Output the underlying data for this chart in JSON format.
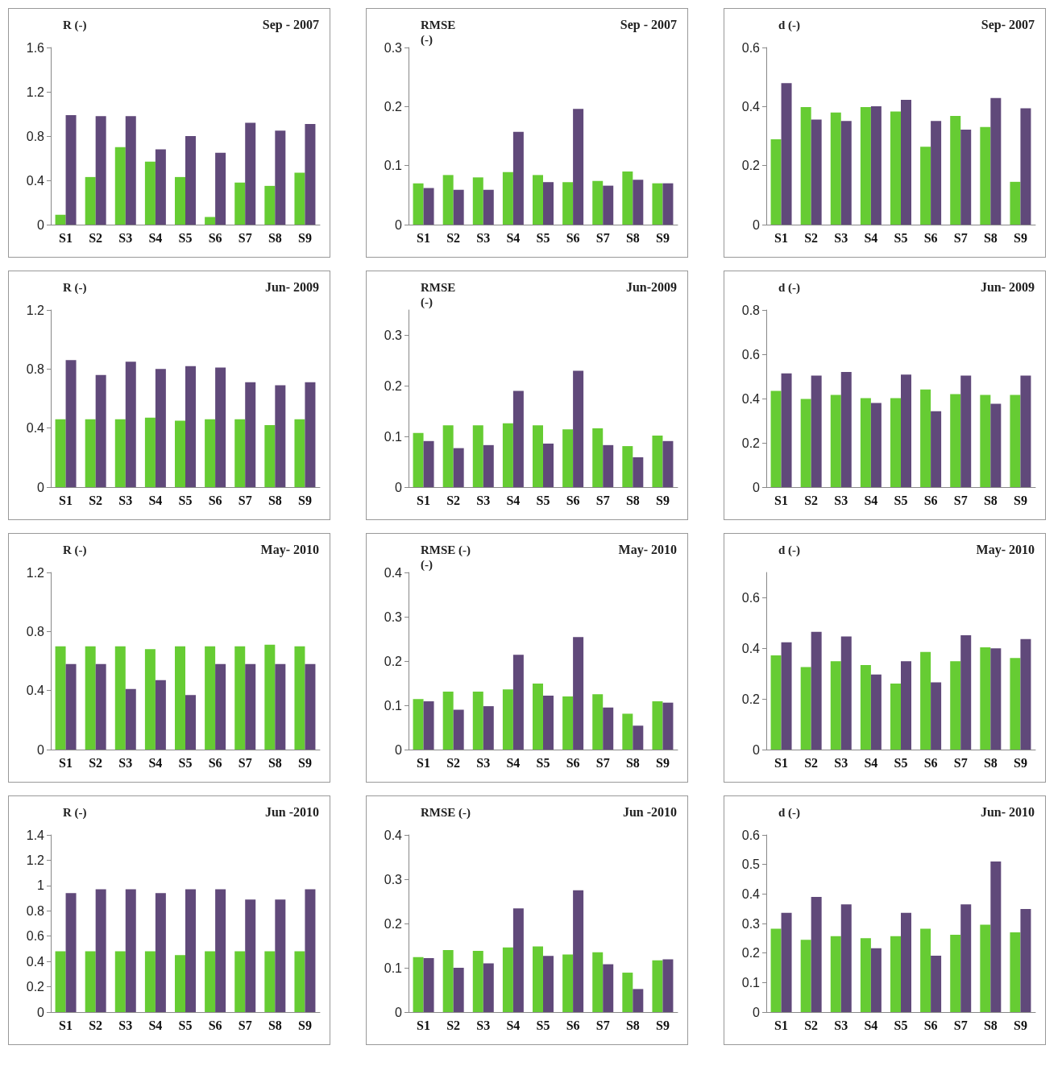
{
  "chart_data": [
    {
      "type": "bar",
      "title": "R (-)",
      "subtitle": "Sep - 2007",
      "categories": [
        "S1",
        "S2",
        "S3",
        "S4",
        "S5",
        "S6",
        "S7",
        "S8",
        "S9"
      ],
      "ylim": [
        0,
        1.6
      ],
      "yticks": [
        0,
        0.4,
        0.8,
        1.2,
        1.6
      ],
      "series": [
        {
          "color": "#66cc33",
          "values": [
            0.09,
            0.43,
            0.7,
            0.57,
            0.43,
            0.07,
            0.38,
            0.35,
            0.47
          ]
        },
        {
          "color": "#60497a",
          "values": [
            0.99,
            0.98,
            0.98,
            0.68,
            0.8,
            0.65,
            0.92,
            0.85,
            0.91
          ]
        }
      ]
    },
    {
      "type": "bar",
      "title": "RMSE\n(-)",
      "subtitle": "Sep - 2007",
      "categories": [
        "S1",
        "S2",
        "S3",
        "S4",
        "S5",
        "S6",
        "S7",
        "S8",
        "S9"
      ],
      "ylim": [
        0,
        0.3
      ],
      "yticks": [
        0,
        0.1,
        0.2,
        0.3
      ],
      "series": [
        {
          "color": "#66cc33",
          "values": [
            0.07,
            0.084,
            0.08,
            0.089,
            0.084,
            0.072,
            0.074,
            0.09,
            0.07
          ]
        },
        {
          "color": "#60497a",
          "values": [
            0.062,
            0.059,
            0.059,
            0.157,
            0.072,
            0.196,
            0.066,
            0.076,
            0.07
          ]
        }
      ]
    },
    {
      "type": "bar",
      "title": "d (-)",
      "subtitle": "Sep- 2007",
      "categories": [
        "S1",
        "S2",
        "S3",
        "S4",
        "S5",
        "S6",
        "S7",
        "S8",
        "S9"
      ],
      "ylim": [
        0,
        0.6
      ],
      "yticks": [
        0,
        0.2,
        0.4,
        0.6
      ],
      "series": [
        {
          "color": "#66cc33",
          "values": [
            0.289,
            0.398,
            0.38,
            0.398,
            0.383,
            0.264,
            0.368,
            0.331,
            0.145
          ]
        },
        {
          "color": "#60497a",
          "values": [
            0.479,
            0.356,
            0.351,
            0.401,
            0.423,
            0.351,
            0.322,
            0.429,
            0.394
          ]
        }
      ]
    },
    {
      "type": "bar",
      "title": "R (-)",
      "subtitle": "Jun- 2009",
      "categories": [
        "S1",
        "S2",
        "S3",
        "S4",
        "S5",
        "S6",
        "S7",
        "S8",
        "S9"
      ],
      "ylim": [
        0,
        1.2
      ],
      "yticks": [
        0,
        0.4,
        0.8,
        1.2
      ],
      "series": [
        {
          "color": "#66cc33",
          "values": [
            0.46,
            0.46,
            0.46,
            0.47,
            0.45,
            0.46,
            0.46,
            0.42,
            0.46
          ]
        },
        {
          "color": "#60497a",
          "values": [
            0.86,
            0.76,
            0.85,
            0.8,
            0.82,
            0.81,
            0.71,
            0.69,
            0.71
          ]
        }
      ]
    },
    {
      "type": "bar",
      "title": "RMSE\n(-)",
      "subtitle": "Jun-2009",
      "categories": [
        "S1",
        "S2",
        "S3",
        "S4",
        "S5",
        "S6",
        "S7",
        "S8",
        "S9"
      ],
      "ylim": [
        0,
        0.35
      ],
      "yticks": [
        0,
        0.1,
        0.2,
        0.3
      ],
      "series": [
        {
          "color": "#66cc33",
          "values": [
            0.107,
            0.122,
            0.122,
            0.126,
            0.122,
            0.114,
            0.116,
            0.081,
            0.102
          ]
        },
        {
          "color": "#60497a",
          "values": [
            0.091,
            0.077,
            0.083,
            0.19,
            0.086,
            0.23,
            0.083,
            0.059,
            0.091
          ]
        }
      ]
    },
    {
      "type": "bar",
      "title": "d (-)",
      "subtitle": "Jun- 2009",
      "categories": [
        "S1",
        "S2",
        "S3",
        "S4",
        "S5",
        "S6",
        "S7",
        "S8",
        "S9"
      ],
      "ylim": [
        0,
        0.8
      ],
      "yticks": [
        0,
        0.2,
        0.4,
        0.6,
        0.8
      ],
      "series": [
        {
          "color": "#66cc33",
          "values": [
            0.435,
            0.398,
            0.416,
            0.402,
            0.402,
            0.441,
            0.42,
            0.416,
            0.416
          ]
        },
        {
          "color": "#60497a",
          "values": [
            0.514,
            0.504,
            0.52,
            0.38,
            0.508,
            0.343,
            0.504,
            0.376,
            0.504
          ]
        }
      ]
    },
    {
      "type": "bar",
      "title": "R (-)",
      "subtitle": "May- 2010",
      "categories": [
        "S1",
        "S2",
        "S3",
        "S4",
        "S5",
        "S6",
        "S7",
        "S8",
        "S9"
      ],
      "ylim": [
        0,
        1.2
      ],
      "yticks": [
        0,
        0.4,
        0.8,
        1.2
      ],
      "series": [
        {
          "color": "#66cc33",
          "values": [
            0.7,
            0.7,
            0.7,
            0.68,
            0.7,
            0.7,
            0.7,
            0.71,
            0.7
          ]
        },
        {
          "color": "#60497a",
          "values": [
            0.58,
            0.58,
            0.41,
            0.47,
            0.37,
            0.58,
            0.58,
            0.58,
            0.58
          ]
        }
      ]
    },
    {
      "type": "bar",
      "title": "RMSE (-)\n(-)",
      "subtitle": "May- 2010",
      "categories": [
        "S1",
        "S2",
        "S3",
        "S4",
        "S5",
        "S6",
        "S7",
        "S8",
        "S9"
      ],
      "ylim": [
        0,
        0.4
      ],
      "yticks": [
        0,
        0.1,
        0.2,
        0.3,
        0.4
      ],
      "series": [
        {
          "color": "#66cc33",
          "values": [
            0.114,
            0.131,
            0.131,
            0.136,
            0.149,
            0.12,
            0.125,
            0.081,
            0.109
          ]
        },
        {
          "color": "#60497a",
          "values": [
            0.109,
            0.09,
            0.098,
            0.214,
            0.122,
            0.254,
            0.095,
            0.054,
            0.106
          ]
        }
      ]
    },
    {
      "type": "bar",
      "title": "d (-)",
      "subtitle": "May- 2010",
      "categories": [
        "S1",
        "S2",
        "S3",
        "S4",
        "S5",
        "S6",
        "S7",
        "S8",
        "S9"
      ],
      "ylim": [
        0,
        0.7
      ],
      "yticks": [
        0,
        0.2,
        0.4,
        0.6
      ],
      "series": [
        {
          "color": "#66cc33",
          "values": [
            0.372,
            0.326,
            0.349,
            0.334,
            0.261,
            0.386,
            0.349,
            0.404,
            0.362
          ]
        },
        {
          "color": "#60497a",
          "values": [
            0.424,
            0.465,
            0.447,
            0.297,
            0.349,
            0.266,
            0.452,
            0.4,
            0.437
          ]
        }
      ]
    },
    {
      "type": "bar",
      "title": "R (-)",
      "subtitle": "Jun -2010",
      "categories": [
        "S1",
        "S2",
        "S3",
        "S4",
        "S5",
        "S6",
        "S7",
        "S8",
        "S9"
      ],
      "ylim": [
        0,
        1.4
      ],
      "yticks": [
        0,
        0.2,
        0.4,
        0.6,
        0.8,
        1,
        1.2,
        1.4
      ],
      "series": [
        {
          "color": "#66cc33",
          "values": [
            0.48,
            0.48,
            0.48,
            0.48,
            0.45,
            0.48,
            0.48,
            0.48,
            0.48
          ]
        },
        {
          "color": "#60497a",
          "values": [
            0.94,
            0.97,
            0.97,
            0.94,
            0.97,
            0.97,
            0.89,
            0.89,
            0.97
          ]
        }
      ]
    },
    {
      "type": "bar",
      "title": "RMSE (-)",
      "subtitle": "Jun -2010",
      "categories": [
        "S1",
        "S2",
        "S3",
        "S4",
        "S5",
        "S6",
        "S7",
        "S8",
        "S9"
      ],
      "ylim": [
        0,
        0.4
      ],
      "yticks": [
        0,
        0.1,
        0.2,
        0.3,
        0.4
      ],
      "series": [
        {
          "color": "#66cc33",
          "values": [
            0.124,
            0.14,
            0.138,
            0.146,
            0.148,
            0.13,
            0.135,
            0.089,
            0.117
          ]
        },
        {
          "color": "#60497a",
          "values": [
            0.122,
            0.1,
            0.11,
            0.234,
            0.127,
            0.275,
            0.108,
            0.052,
            0.119
          ]
        }
      ]
    },
    {
      "type": "bar",
      "title": "d (-)",
      "subtitle": "Jun- 2010",
      "categories": [
        "S1",
        "S2",
        "S3",
        "S4",
        "S5",
        "S6",
        "S7",
        "S8",
        "S9"
      ],
      "ylim": [
        0,
        0.6
      ],
      "yticks": [
        0,
        0.1,
        0.2,
        0.3,
        0.4,
        0.5,
        0.6
      ],
      "series": [
        {
          "color": "#66cc33",
          "values": [
            0.282,
            0.245,
            0.257,
            0.25,
            0.257,
            0.282,
            0.262,
            0.296,
            0.27
          ]
        },
        {
          "color": "#60497a",
          "values": [
            0.336,
            0.39,
            0.365,
            0.216,
            0.336,
            0.191,
            0.365,
            0.51,
            0.349
          ]
        }
      ]
    }
  ]
}
